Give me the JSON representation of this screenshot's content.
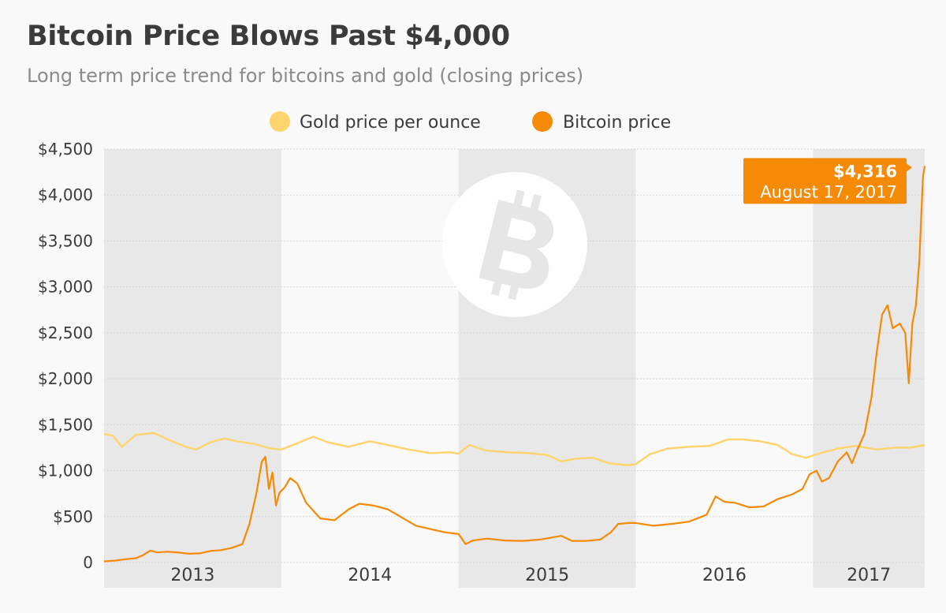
{
  "header": {
    "title": "Bitcoin Price Blows Past $4,000",
    "subtitle": "Long term price trend for bitcoins and gold (closing prices)"
  },
  "chart_data": {
    "type": "line",
    "title": "Bitcoin Price Blows Past $4,000",
    "subtitle": "Long term price trend for bitcoins and gold (closing prices)",
    "xlabel": "",
    "ylabel": "",
    "ylim": [
      0,
      4500
    ],
    "xlim": [
      2013.0,
      2017.63
    ],
    "y_ticks": [
      0,
      500,
      1000,
      1500,
      2000,
      2500,
      3000,
      3500,
      4000,
      4500
    ],
    "y_tick_labels": [
      "0",
      "$500",
      "$1,000",
      "$1,500",
      "$2,000",
      "$2,500",
      "$3,000",
      "$3,500",
      "$4,000",
      "$4,500"
    ],
    "x_categories": [
      "2013",
      "2014",
      "2015",
      "2016",
      "2017"
    ],
    "legend_position": "top-center",
    "colors": {
      "gold": "#fdd46e",
      "bitcoin": "#f58a07",
      "band": "#e8e8e8",
      "text": "#3b3b3b"
    },
    "series": [
      {
        "name": "Gold price per ounce",
        "color": "#fdd46e",
        "points": [
          [
            2013.0,
            1400
          ],
          [
            2013.05,
            1380
          ],
          [
            2013.1,
            1260
          ],
          [
            2013.18,
            1390
          ],
          [
            2013.28,
            1410
          ],
          [
            2013.36,
            1340
          ],
          [
            2013.46,
            1260
          ],
          [
            2013.52,
            1230
          ],
          [
            2013.6,
            1310
          ],
          [
            2013.68,
            1350
          ],
          [
            2013.75,
            1320
          ],
          [
            2013.85,
            1290
          ],
          [
            2013.94,
            1240
          ],
          [
            2014.0,
            1230
          ],
          [
            2014.08,
            1290
          ],
          [
            2014.18,
            1370
          ],
          [
            2014.26,
            1310
          ],
          [
            2014.38,
            1260
          ],
          [
            2014.5,
            1320
          ],
          [
            2014.6,
            1280
          ],
          [
            2014.72,
            1230
          ],
          [
            2014.84,
            1190
          ],
          [
            2014.95,
            1200
          ],
          [
            2015.0,
            1185
          ],
          [
            2015.06,
            1280
          ],
          [
            2015.15,
            1220
          ],
          [
            2015.28,
            1200
          ],
          [
            2015.4,
            1190
          ],
          [
            2015.5,
            1170
          ],
          [
            2015.58,
            1100
          ],
          [
            2015.66,
            1130
          ],
          [
            2015.76,
            1140
          ],
          [
            2015.85,
            1080
          ],
          [
            2015.95,
            1060
          ],
          [
            2016.0,
            1070
          ],
          [
            2016.08,
            1180
          ],
          [
            2016.18,
            1240
          ],
          [
            2016.3,
            1260
          ],
          [
            2016.42,
            1270
          ],
          [
            2016.52,
            1340
          ],
          [
            2016.6,
            1340
          ],
          [
            2016.7,
            1320
          ],
          [
            2016.8,
            1280
          ],
          [
            2016.88,
            1180
          ],
          [
            2016.96,
            1140
          ],
          [
            2017.04,
            1190
          ],
          [
            2017.14,
            1240
          ],
          [
            2017.24,
            1270
          ],
          [
            2017.36,
            1230
          ],
          [
            2017.46,
            1250
          ],
          [
            2017.55,
            1250
          ],
          [
            2017.63,
            1280
          ]
        ]
      },
      {
        "name": "Bitcoin price",
        "color": "#f58a07",
        "points": [
          [
            2013.0,
            13
          ],
          [
            2013.06,
            20
          ],
          [
            2013.12,
            35
          ],
          [
            2013.18,
            47
          ],
          [
            2013.22,
            80
          ],
          [
            2013.26,
            130
          ],
          [
            2013.3,
            110
          ],
          [
            2013.36,
            118
          ],
          [
            2013.42,
            108
          ],
          [
            2013.48,
            95
          ],
          [
            2013.54,
            100
          ],
          [
            2013.6,
            125
          ],
          [
            2013.66,
            135
          ],
          [
            2013.72,
            160
          ],
          [
            2013.78,
            200
          ],
          [
            2013.82,
            420
          ],
          [
            2013.86,
            760
          ],
          [
            2013.89,
            1100
          ],
          [
            2013.91,
            1150
          ],
          [
            2013.93,
            800
          ],
          [
            2013.95,
            980
          ],
          [
            2013.97,
            620
          ],
          [
            2013.99,
            760
          ],
          [
            2014.02,
            820
          ],
          [
            2014.05,
            920
          ],
          [
            2014.09,
            860
          ],
          [
            2014.14,
            650
          ],
          [
            2014.22,
            480
          ],
          [
            2014.3,
            460
          ],
          [
            2014.38,
            580
          ],
          [
            2014.44,
            640
          ],
          [
            2014.52,
            620
          ],
          [
            2014.6,
            580
          ],
          [
            2014.68,
            490
          ],
          [
            2014.76,
            400
          ],
          [
            2014.85,
            360
          ],
          [
            2014.92,
            330
          ],
          [
            2015.0,
            310
          ],
          [
            2015.04,
            200
          ],
          [
            2015.08,
            240
          ],
          [
            2015.16,
            260
          ],
          [
            2015.26,
            240
          ],
          [
            2015.36,
            235
          ],
          [
            2015.46,
            250
          ],
          [
            2015.52,
            270
          ],
          [
            2015.58,
            290
          ],
          [
            2015.64,
            235
          ],
          [
            2015.72,
            235
          ],
          [
            2015.8,
            250
          ],
          [
            2015.86,
            330
          ],
          [
            2015.9,
            420
          ],
          [
            2015.96,
            430
          ],
          [
            2016.0,
            430
          ],
          [
            2016.1,
            400
          ],
          [
            2016.2,
            420
          ],
          [
            2016.3,
            445
          ],
          [
            2016.4,
            520
          ],
          [
            2016.45,
            720
          ],
          [
            2016.5,
            660
          ],
          [
            2016.56,
            650
          ],
          [
            2016.64,
            600
          ],
          [
            2016.72,
            610
          ],
          [
            2016.8,
            690
          ],
          [
            2016.88,
            740
          ],
          [
            2016.94,
            800
          ],
          [
            2016.98,
            960
          ],
          [
            2017.02,
            1000
          ],
          [
            2017.05,
            880
          ],
          [
            2017.09,
            920
          ],
          [
            2017.14,
            1100
          ],
          [
            2017.19,
            1200
          ],
          [
            2017.22,
            1080
          ],
          [
            2017.25,
            1230
          ],
          [
            2017.29,
            1400
          ],
          [
            2017.33,
            1800
          ],
          [
            2017.36,
            2300
          ],
          [
            2017.39,
            2700
          ],
          [
            2017.42,
            2800
          ],
          [
            2017.45,
            2550
          ],
          [
            2017.49,
            2600
          ],
          [
            2017.52,
            2500
          ],
          [
            2017.54,
            1950
          ],
          [
            2017.56,
            2600
          ],
          [
            2017.58,
            2800
          ],
          [
            2017.6,
            3300
          ],
          [
            2017.61,
            3750
          ],
          [
            2017.62,
            4200
          ],
          [
            2017.63,
            4316
          ]
        ]
      }
    ],
    "annotation": {
      "value": "$4,316",
      "date": "August 17, 2017"
    }
  },
  "legend": {
    "gold": "Gold price per ounce",
    "bitcoin": "Bitcoin price"
  },
  "icons": {
    "watermark": "bitcoin-logo-icon"
  }
}
